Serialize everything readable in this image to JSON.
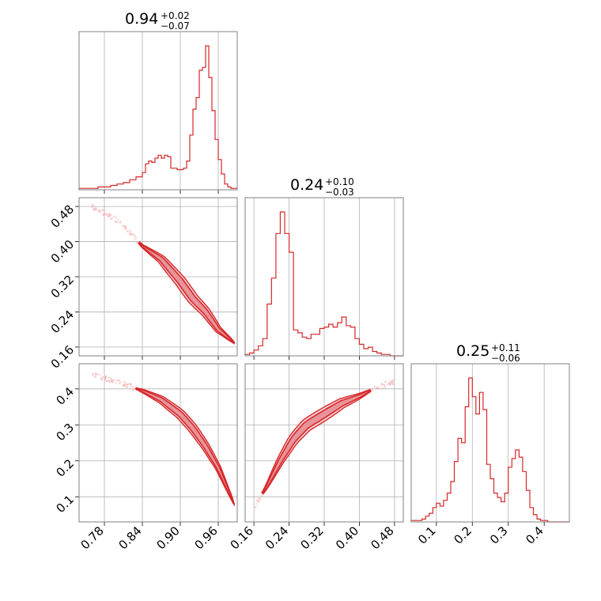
{
  "colors": {
    "line": "#d62728",
    "fill_inner": "#e8939a",
    "fill_outer": "#f7cfd2",
    "scatter": "#f3b1b6",
    "grid": "#b0b0b0",
    "frame": "#808080"
  },
  "chart_data": {
    "type": "corner",
    "grid": true,
    "parameters": [
      {
        "title_value": "0.94",
        "title_plus": "+0.02",
        "title_minus": "−0.07",
        "range": [
          0.74,
          0.99
        ]
      },
      {
        "title_value": "0.24",
        "title_plus": "+0.10",
        "title_minus": "−0.03",
        "range": [
          0.14,
          0.5
        ]
      },
      {
        "title_value": "0.25",
        "title_plus": "+0.11",
        "title_minus": "−0.06",
        "range": [
          0.03,
          0.47
        ]
      }
    ],
    "ticks": {
      "p1": [
        "0.78",
        "0.84",
        "0.90",
        "0.96"
      ],
      "p1_values": [
        0.78,
        0.84,
        0.9,
        0.96
      ],
      "p2": [
        "0.16",
        "0.24",
        "0.32",
        "0.40",
        "0.48"
      ],
      "p2_values": [
        0.16,
        0.24,
        0.32,
        0.4,
        0.48
      ],
      "p3": [
        "0.1",
        "0.2",
        "0.3",
        "0.4"
      ],
      "p3_values": [
        0.1,
        0.2,
        0.3,
        0.4
      ]
    },
    "hist_p1": {
      "bins": [
        0.74,
        0.75,
        0.76,
        0.77,
        0.78,
        0.79,
        0.8,
        0.81,
        0.82,
        0.83,
        0.84,
        0.845,
        0.85,
        0.855,
        0.86,
        0.865,
        0.87,
        0.875,
        0.88,
        0.885,
        0.89,
        0.895,
        0.9,
        0.905,
        0.91,
        0.915,
        0.92,
        0.925,
        0.93,
        0.935,
        0.94,
        0.945,
        0.95,
        0.955,
        0.96,
        0.965,
        0.97,
        0.975,
        0.98,
        0.985,
        0.99
      ],
      "values": [
        0.01,
        0.01,
        0.01,
        0.02,
        0.02,
        0.03,
        0.04,
        0.05,
        0.07,
        0.09,
        0.12,
        0.18,
        0.2,
        0.19,
        0.22,
        0.24,
        0.22,
        0.24,
        0.23,
        0.15,
        0.15,
        0.14,
        0.14,
        0.15,
        0.2,
        0.38,
        0.56,
        0.64,
        0.83,
        0.85,
        1.0,
        0.78,
        0.55,
        0.35,
        0.21,
        0.11,
        0.04,
        0.02,
        0.01,
        0.01
      ]
    },
    "hist_p2": {
      "bins": [
        0.14,
        0.15,
        0.16,
        0.17,
        0.18,
        0.19,
        0.2,
        0.21,
        0.22,
        0.23,
        0.24,
        0.25,
        0.26,
        0.27,
        0.28,
        0.29,
        0.3,
        0.31,
        0.32,
        0.33,
        0.34,
        0.35,
        0.36,
        0.37,
        0.38,
        0.39,
        0.4,
        0.41,
        0.42,
        0.43,
        0.44,
        0.45,
        0.46,
        0.47,
        0.48,
        0.49,
        0.5
      ],
      "values": [
        0.01,
        0.02,
        0.04,
        0.07,
        0.12,
        0.36,
        0.54,
        0.85,
        1.0,
        0.85,
        0.72,
        0.18,
        0.16,
        0.13,
        0.12,
        0.15,
        0.15,
        0.19,
        0.2,
        0.22,
        0.2,
        0.23,
        0.27,
        0.21,
        0.2,
        0.12,
        0.08,
        0.05,
        0.06,
        0.03,
        0.02,
        0.01,
        0.01,
        0.0,
        0.0,
        0.0
      ]
    },
    "hist_p3": {
      "bins": [
        0.03,
        0.04,
        0.05,
        0.06,
        0.07,
        0.08,
        0.09,
        0.1,
        0.11,
        0.12,
        0.13,
        0.14,
        0.15,
        0.16,
        0.17,
        0.18,
        0.19,
        0.2,
        0.21,
        0.22,
        0.23,
        0.24,
        0.25,
        0.26,
        0.27,
        0.28,
        0.29,
        0.3,
        0.31,
        0.32,
        0.33,
        0.34,
        0.35,
        0.36,
        0.37,
        0.38,
        0.39,
        0.4,
        0.41,
        0.42,
        0.43,
        0.44,
        0.45,
        0.46,
        0.47
      ],
      "values": [
        0.01,
        0.01,
        0.01,
        0.02,
        0.04,
        0.06,
        0.1,
        0.13,
        0.11,
        0.15,
        0.2,
        0.28,
        0.42,
        0.58,
        0.55,
        0.8,
        1.0,
        0.87,
        0.75,
        0.9,
        0.78,
        0.4,
        0.3,
        0.2,
        0.17,
        0.14,
        0.2,
        0.38,
        0.44,
        0.5,
        0.45,
        0.35,
        0.22,
        0.1,
        0.05,
        0.02,
        0.01,
        0.01,
        0.0,
        0.0,
        0.0,
        0.0,
        0.0,
        0.0
      ]
    },
    "curve_p1_p2": [
      [
        0.76,
        0.48
      ],
      [
        0.8,
        0.45
      ],
      [
        0.84,
        0.39
      ],
      [
        0.87,
        0.36
      ],
      [
        0.9,
        0.31
      ],
      [
        0.92,
        0.27
      ],
      [
        0.94,
        0.24
      ],
      [
        0.96,
        0.2
      ],
      [
        0.985,
        0.17
      ]
    ],
    "curve_p1_p3": [
      [
        0.76,
        0.44
      ],
      [
        0.8,
        0.42
      ],
      [
        0.84,
        0.395
      ],
      [
        0.87,
        0.37
      ],
      [
        0.9,
        0.33
      ],
      [
        0.92,
        0.29
      ],
      [
        0.94,
        0.24
      ],
      [
        0.96,
        0.18
      ],
      [
        0.985,
        0.08
      ]
    ],
    "curve_p2_p3": [
      [
        0.16,
        0.07
      ],
      [
        0.19,
        0.13
      ],
      [
        0.22,
        0.2
      ],
      [
        0.25,
        0.26
      ],
      [
        0.28,
        0.3
      ],
      [
        0.32,
        0.33
      ],
      [
        0.36,
        0.36
      ],
      [
        0.4,
        0.38
      ],
      [
        0.44,
        0.405
      ],
      [
        0.48,
        0.42
      ]
    ]
  }
}
